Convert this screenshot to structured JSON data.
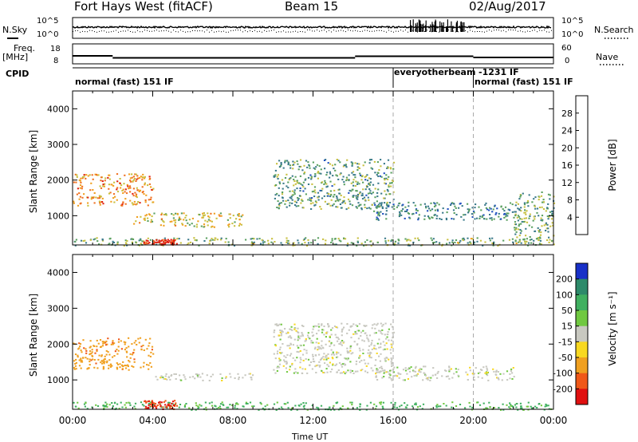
{
  "header": {
    "station": "Fort Hays West (fitACF)",
    "beam": "Beam 15",
    "date": "02/Aug/2017"
  },
  "top_panels": {
    "nsky_label": "N.Sky",
    "nsearch_label": "N.Search",
    "nsky_ticks": [
      "10^5",
      "10^0"
    ],
    "nsearch_ticks": [
      "10^5",
      "10^0"
    ],
    "freq_label": "Freq.",
    "freq_unit": "[MHz]",
    "freq_ticks": [
      "18",
      "8"
    ],
    "nave_label": "Nave",
    "nave_ticks": [
      "60",
      "0"
    ],
    "cpid_label": "CPID",
    "cpid_segments": [
      {
        "label": "normal (fast) 151 IF",
        "start": 0,
        "end": 16
      },
      {
        "label": "everyotherbeam",
        "start": 16,
        "end": 20
      },
      {
        "label": "normal (fast) 151 IF",
        "start": 20,
        "end": 24
      }
    ],
    "cpid_extra": "-1231 IF"
  },
  "chart_data": [
    {
      "type": "heatmap",
      "title": "",
      "ylabel": "Slant Range [km]",
      "xlabel": "",
      "xlim": [
        0,
        24
      ],
      "ylim": [
        180,
        4500
      ],
      "yticks": [
        "1000",
        "2000",
        "3000",
        "4000"
      ],
      "colorbar": {
        "label": "Power [dB]",
        "ticks": [
          "4",
          "8",
          "12",
          "16",
          "20",
          "24",
          "28"
        ],
        "range": [
          0,
          30
        ],
        "colors": [
          "#0a2aff",
          "#2050c0",
          "#3a7a8a",
          "#5aa060",
          "#c8c040",
          "#f0a020",
          "#f07020",
          "#e02010"
        ]
      },
      "features": [
        {
          "name": "E-region band",
          "t": [
            0,
            24
          ],
          "range_km": [
            180,
            400
          ],
          "level": 14
        },
        {
          "name": "strong echo",
          "t": [
            3.5,
            5.2
          ],
          "range_km": [
            200,
            350
          ],
          "level": 29
        },
        {
          "name": "F-region patch",
          "t": [
            0,
            4
          ],
          "range_km": [
            1300,
            2200
          ],
          "level": 22
        },
        {
          "name": "F-region patch 2",
          "t": [
            3,
            8.5
          ],
          "range_km": [
            700,
            1100
          ],
          "level": 18
        },
        {
          "name": "arc",
          "t": [
            10,
            16
          ],
          "range_km": [
            1200,
            2600
          ],
          "level": 12
        },
        {
          "name": "band",
          "t": [
            15,
            22
          ],
          "range_km": [
            900,
            1400
          ],
          "level": 10
        },
        {
          "name": "late patch",
          "t": [
            22,
            24
          ],
          "range_km": [
            300,
            1700
          ],
          "level": 13
        }
      ]
    },
    {
      "type": "heatmap",
      "title": "",
      "ylabel": "Slant Range [km]",
      "xlabel": "Time UT",
      "xlim": [
        0,
        24
      ],
      "ylim": [
        180,
        4500
      ],
      "xticks": [
        "00:00",
        "04:00",
        "08:00",
        "12:00",
        "16:00",
        "20:00",
        "00:00"
      ],
      "yticks": [
        "1000",
        "2000",
        "3000",
        "4000"
      ],
      "colorbar": {
        "label": "Velocity [m s⁻¹]",
        "ticks": [
          "200",
          "100",
          "50",
          "15",
          "-15",
          "-50",
          "-100",
          "-200"
        ],
        "colors": [
          "#1830c8",
          "#2d8a6a",
          "#40b060",
          "#70c840",
          "#c8c8c0",
          "#f8d820",
          "#f0a020",
          "#f05818",
          "#e01010"
        ]
      },
      "features": [
        {
          "name": "ground scatter band",
          "t": [
            0,
            24
          ],
          "range_km": [
            180,
            400
          ],
          "velocity": 40
        },
        {
          "name": "strong flow",
          "t": [
            3.5,
            5.2
          ],
          "range_km": [
            200,
            450
          ],
          "velocity": -150
        },
        {
          "name": "F-region patch",
          "t": [
            0,
            4
          ],
          "range_km": [
            1300,
            2200
          ],
          "velocity": -60
        },
        {
          "name": "gray band",
          "t": [
            4,
            9
          ],
          "range_km": [
            1000,
            1200
          ],
          "velocity": 0
        },
        {
          "name": "arc",
          "t": [
            10,
            16
          ],
          "range_km": [
            1200,
            2600
          ],
          "velocity": 0
        },
        {
          "name": "band",
          "t": [
            15,
            22
          ],
          "range_km": [
            1000,
            1400
          ],
          "velocity": 0
        }
      ]
    }
  ]
}
